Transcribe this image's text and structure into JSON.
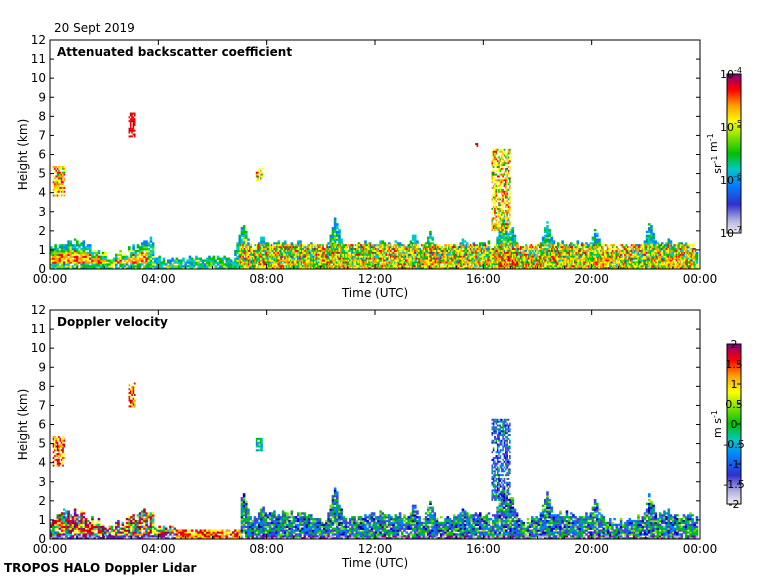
{
  "date_label": "20 Sept 2019",
  "footer_label": "TROPOS HALO Doppler Lidar",
  "colors": {
    "palette": [
      "#f2f2f2",
      "#b0b0e0",
      "#4040e0",
      "#0000c8",
      "#0080ff",
      "#00c8c8",
      "#00c000",
      "#80e000",
      "#ffff00",
      "#ffa000",
      "#ff0000",
      "#c00000",
      "#800080"
    ]
  },
  "chart_data": [
    {
      "type": "heatmap",
      "title": "Attenuated backscatter coefficient",
      "xlabel": "Time (UTC)",
      "ylabel": "Height (km)",
      "xlim": [
        "00:00",
        "24:00"
      ],
      "ylim": [
        0,
        12
      ],
      "xticks": [
        "00:00",
        "04:00",
        "08:00",
        "12:00",
        "16:00",
        "20:00",
        "00:00"
      ],
      "yticks": [
        "0",
        "1",
        "2",
        "3",
        "4",
        "5",
        "6",
        "7",
        "8",
        "9",
        "10",
        "11",
        "12"
      ],
      "colorbar": {
        "label": "sr-1 m-1",
        "scale": "log",
        "range": [
          1e-07,
          0.0001
        ],
        "ticks": [
          {
            "base": "10",
            "exp": "-4"
          },
          {
            "base": "10",
            "exp": "-5"
          },
          {
            "base": "10",
            "exp": "-6"
          },
          {
            "base": "10",
            "exp": "-7"
          }
        ]
      },
      "features": [
        {
          "t0": 0.0,
          "t1": 7.0,
          "h0": 0.0,
          "h1": 1.2,
          "level": "medium"
        },
        {
          "t0": 0.0,
          "t1": 3.5,
          "h0": 0.3,
          "h1": 1.0,
          "level": "high"
        },
        {
          "t0": 7.0,
          "t1": 23.8,
          "h0": 0.0,
          "h1": 1.3,
          "level": "medium"
        },
        {
          "t0": 0.1,
          "t1": 0.5,
          "h0": 3.8,
          "h1": 5.3,
          "level": "high"
        },
        {
          "t0": 2.9,
          "t1": 3.1,
          "h0": 6.9,
          "h1": 8.1,
          "level": "very high"
        },
        {
          "t0": 7.6,
          "t1": 7.8,
          "h0": 4.6,
          "h1": 5.2,
          "level": "high"
        },
        {
          "t0": 15.7,
          "t1": 15.8,
          "h0": 6.4,
          "h1": 6.6,
          "level": "very high"
        },
        {
          "t0": 16.3,
          "t1": 17.0,
          "h0": 2.0,
          "h1": 6.2,
          "level": "high"
        }
      ]
    },
    {
      "type": "heatmap",
      "title": "Doppler velocity",
      "xlabel": "Time (UTC)",
      "ylabel": "Height (km)",
      "xlim": [
        "00:00",
        "24:00"
      ],
      "ylim": [
        0,
        12
      ],
      "xticks": [
        "00:00",
        "04:00",
        "08:00",
        "12:00",
        "16:00",
        "20:00",
        "00:00"
      ],
      "yticks": [
        "0",
        "1",
        "2",
        "3",
        "4",
        "5",
        "6",
        "7",
        "8",
        "9",
        "10",
        "11",
        "12"
      ],
      "colorbar": {
        "label": "m s-1",
        "scale": "linear",
        "range": [
          -2,
          2
        ],
        "ticks": [
          "2",
          "1.5",
          "1",
          "0.5",
          "0",
          "-0.5",
          "-1",
          "-1.5",
          "-2"
        ]
      },
      "features": [
        {
          "t0": 0.0,
          "t1": 4.5,
          "h0": 0.0,
          "h1": 1.0,
          "level": "mixed positive"
        },
        {
          "t0": 7.0,
          "t1": 23.8,
          "h0": 0.0,
          "h1": 1.5,
          "level": "negative"
        },
        {
          "t0": 0.1,
          "t1": 0.5,
          "h0": 3.8,
          "h1": 5.3,
          "level": "positive"
        },
        {
          "t0": 2.9,
          "t1": 3.1,
          "h0": 6.9,
          "h1": 8.1,
          "level": "positive"
        },
        {
          "t0": 7.6,
          "t1": 7.8,
          "h0": 4.6,
          "h1": 5.2,
          "level": "neutral"
        },
        {
          "t0": 16.3,
          "t1": 17.0,
          "h0": 2.0,
          "h1": 6.2,
          "level": "negative"
        }
      ]
    }
  ]
}
